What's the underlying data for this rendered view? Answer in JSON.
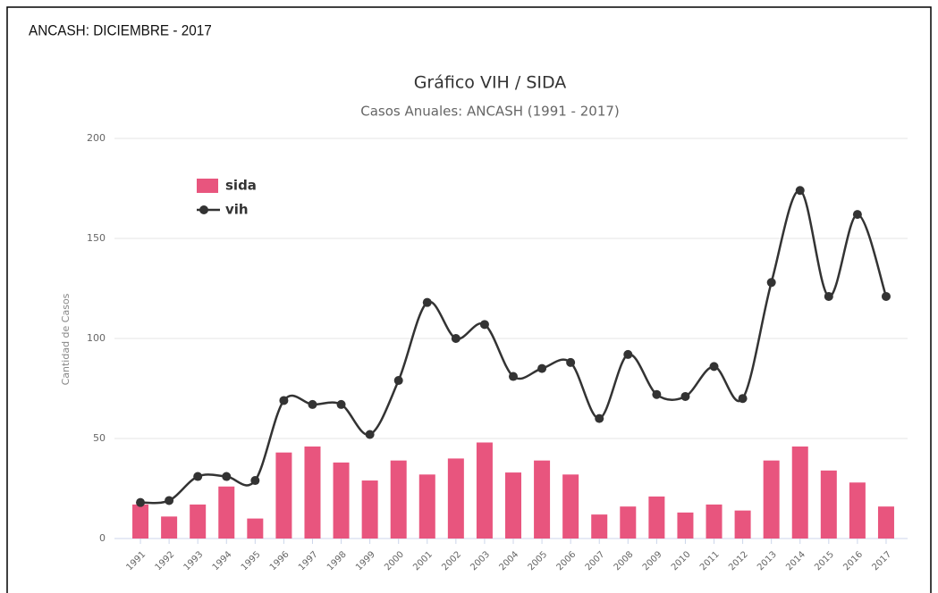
{
  "header": "ANCASH: DICIEMBRE - 2017",
  "chart_data": {
    "type": "combo",
    "title": "Gráfico VIH / SIDA",
    "subtitle": "Casos Anuales: ANCASH (1991 - 2017)",
    "y_label": "Cantidad de Casos",
    "categories": [
      "1991",
      "1992",
      "1993",
      "1994",
      "1995",
      "1996",
      "1997",
      "1998",
      "1999",
      "2000",
      "2001",
      "2002",
      "2003",
      "2004",
      "2005",
      "2006",
      "2007",
      "2008",
      "2009",
      "2010",
      "2011",
      "2012",
      "2013",
      "2014",
      "2015",
      "2016",
      "2017"
    ],
    "series": [
      {
        "name": "sida",
        "type": "bar",
        "color": "#e8557e",
        "values": [
          17,
          11,
          17,
          26,
          10,
          43,
          46,
          38,
          29,
          39,
          32,
          40,
          48,
          33,
          39,
          32,
          12,
          16,
          21,
          13,
          17,
          14,
          39,
          46,
          34,
          28,
          16
        ]
      },
      {
        "name": "vih",
        "type": "line",
        "color": "#333333",
        "values": [
          18,
          19,
          31,
          31,
          29,
          69,
          67,
          67,
          52,
          79,
          118,
          100,
          107,
          81,
          85,
          88,
          60,
          92,
          72,
          71,
          86,
          70,
          128,
          174,
          121,
          162,
          121
        ]
      }
    ],
    "ylim": [
      0,
      200
    ],
    "yticks": [
      0,
      50,
      100,
      150,
      200
    ],
    "grid": true,
    "legend": "top-left"
  }
}
